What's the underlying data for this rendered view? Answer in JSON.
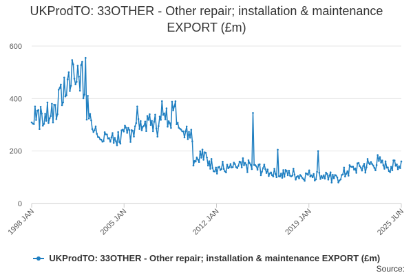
{
  "title": "UKProdTO: 33OTHER - Other repair; installation & maintenance EXPORT (£m)",
  "source_label": "Source:",
  "colors": {
    "series": "#1f7fc1",
    "grid": "#e6e6e6",
    "axis": "#cccccc",
    "text": "#333333"
  },
  "chart_data": {
    "type": "line",
    "title": "UKProdTO: 33OTHER - Other repair; installation & maintenance EXPORT (£m)",
    "xlabel": "",
    "ylabel": "",
    "ylim": [
      0,
      600
    ],
    "yticks": [
      0,
      200,
      400,
      600
    ],
    "xlim": [
      "1998-01",
      "2025-06"
    ],
    "xticks": [
      "1998 JAN",
      "2005 JAN",
      "2012 JAN",
      "2019 JAN",
      "2025 JUN"
    ],
    "frequency": "monthly",
    "grid": "horizontal",
    "legend_position": "bottom",
    "series": [
      {
        "name": "UKProdTO: 33OTHER - Other repair; installation & maintenance EXPORT (£m)",
        "anchors": [
          [
            "1998-01",
            300
          ],
          [
            "1998-05",
            360
          ],
          [
            "1998-09",
            330
          ],
          [
            "1999-01",
            310
          ],
          [
            "1999-06",
            350
          ],
          [
            "2000-01",
            380
          ],
          [
            "2000-06",
            420
          ],
          [
            "2000-11",
            480
          ],
          [
            "2001-03",
            470
          ],
          [
            "2001-08",
            500
          ],
          [
            "2001-12",
            420
          ],
          [
            "2002-04",
            340
          ],
          [
            "2002-08",
            280
          ],
          [
            "2003-02",
            260
          ],
          [
            "2003-08",
            250
          ],
          [
            "2004-03",
            245
          ],
          [
            "2004-09",
            255
          ],
          [
            "2005-03",
            270
          ],
          [
            "2005-09",
            290
          ],
          [
            "2006-03",
            300
          ],
          [
            "2006-09",
            310
          ],
          [
            "2007-03",
            300
          ],
          [
            "2007-09",
            320
          ],
          [
            "2008-03",
            340
          ],
          [
            "2008-08",
            355
          ],
          [
            "2009-01",
            300
          ],
          [
            "2009-06",
            275
          ],
          [
            "2009-11",
            285
          ],
          [
            "2010-02",
            175
          ],
          [
            "2010-08",
            185
          ],
          [
            "2011-02",
            165
          ],
          [
            "2011-09",
            140
          ],
          [
            "2012-06",
            130
          ],
          [
            "2013-01",
            135
          ],
          [
            "2013-08",
            140
          ],
          [
            "2014-02",
            145
          ],
          [
            "2014-09",
            135
          ],
          [
            "2015-03",
            130
          ],
          [
            "2015-10",
            120
          ],
          [
            "2016-06",
            110
          ],
          [
            "2017-01",
            115
          ],
          [
            "2017-08",
            110
          ],
          [
            "2018-03",
            105
          ],
          [
            "2018-10",
            115
          ],
          [
            "2019-04",
            105
          ],
          [
            "2019-11",
            110
          ],
          [
            "2020-05",
            95
          ],
          [
            "2020-12",
            100
          ],
          [
            "2021-06",
            125
          ],
          [
            "2022-01",
            135
          ],
          [
            "2022-08",
            140
          ],
          [
            "2023-03",
            150
          ],
          [
            "2023-10",
            155
          ],
          [
            "2024-05",
            145
          ],
          [
            "2024-11",
            140
          ],
          [
            "2025-06",
            155
          ]
        ],
        "notable_points": [
          [
            "1998-04",
            370
          ],
          [
            "1999-03",
            385
          ],
          [
            "2000-02",
            440
          ],
          [
            "2001-02",
            530
          ],
          [
            "2001-06",
            525
          ],
          [
            "2001-10",
            540
          ],
          [
            "2002-01",
            555
          ],
          [
            "2005-11",
            370
          ],
          [
            "2007-09",
            390
          ],
          [
            "2008-06",
            388
          ],
          [
            "2010-01",
            145
          ],
          [
            "2014-06",
            345
          ],
          [
            "2016-04",
            205
          ],
          [
            "2019-04",
            200
          ],
          [
            "2020-04",
            80
          ]
        ]
      }
    ]
  }
}
